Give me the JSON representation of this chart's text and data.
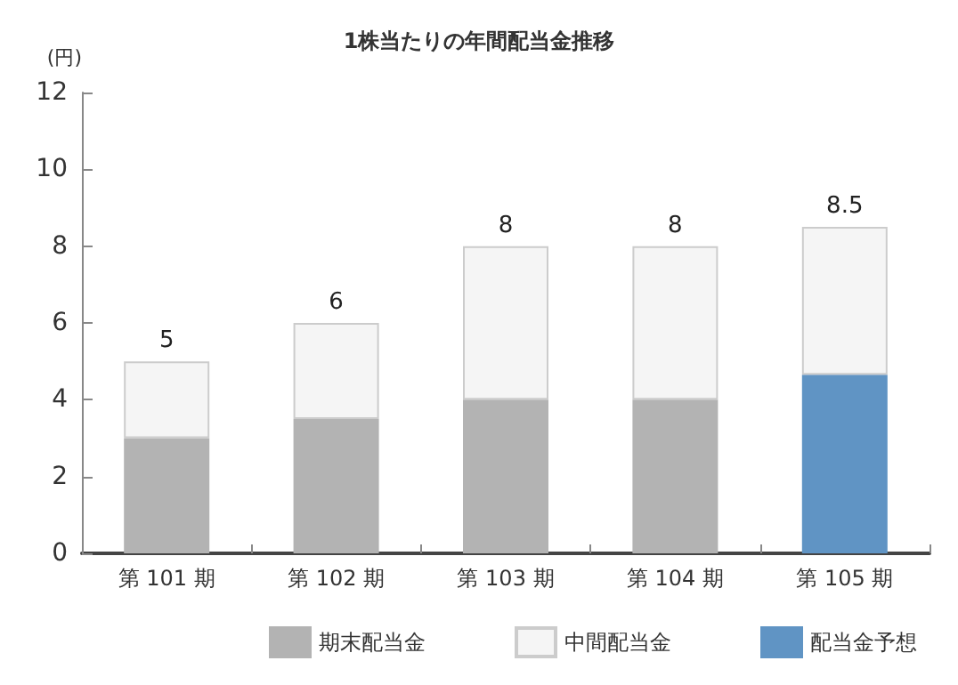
{
  "chart_data": {
    "type": "bar",
    "title": "1株当たりの年間配当金推移",
    "ylabel": "(円)",
    "categories": [
      "第 101 期",
      "第 102 期",
      "第 103 期",
      "第 104 期",
      "第 105 期"
    ],
    "stacked": true,
    "series": [
      {
        "name": "期末配当金",
        "color": "#b3b3b3",
        "values": [
          3,
          3.5,
          4,
          4,
          null
        ]
      },
      {
        "name": "配当金予想",
        "color": "#6094c4",
        "values": [
          null,
          null,
          null,
          null,
          4.65
        ]
      },
      {
        "name": "中間配当金",
        "color": "#f5f5f5",
        "values": [
          2,
          2.5,
          4,
          4,
          3.85
        ]
      }
    ],
    "totals": [
      "5",
      "6",
      "8",
      "8",
      "8.5"
    ],
    "ylim": [
      0,
      12
    ],
    "yticks": [
      0,
      2,
      4,
      6,
      8,
      10,
      12
    ],
    "grid": false,
    "legend": "bottom right"
  }
}
